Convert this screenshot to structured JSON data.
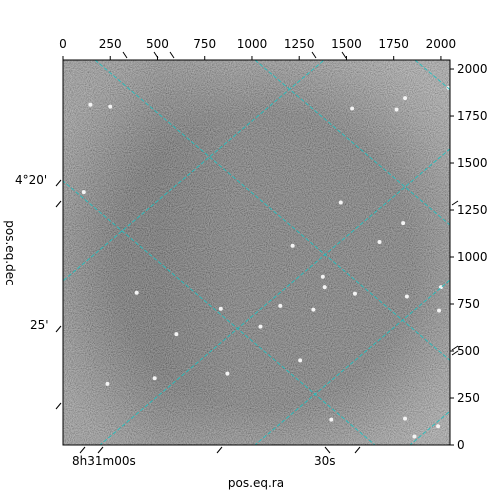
{
  "chart_data": {
    "type": "image",
    "xlabel": "pos.eq.ra",
    "ylabel": "pos.eq.dec",
    "pixel_axes": {
      "x_ticks": [
        0,
        250,
        500,
        750,
        1000,
        1250,
        1500,
        1750,
        2000
      ],
      "x_tick_labels": [
        "0",
        "250",
        "500",
        "750",
        "1000",
        "1250",
        "1500",
        "1750",
        "2000"
      ],
      "xlim": [
        0,
        2048
      ],
      "y_ticks": [
        0,
        250,
        500,
        750,
        1000,
        1250,
        1500,
        1750,
        2000
      ],
      "y_tick_labels": [
        "0",
        "250",
        "500",
        "750",
        "1000",
        "1250",
        "1500",
        "1750",
        "2000"
      ],
      "ylim": [
        0,
        2048
      ]
    },
    "world_axes": {
      "ra_tick_labels": [
        "8h31m00s",
        "30s"
      ],
      "dec_tick_labels": [
        "4°20'",
        "25'"
      ]
    },
    "grid": true,
    "grid_color": "#20c0c0",
    "colormap": "gray",
    "bright_sources": [
      {
        "x": 145,
        "y": 1810
      },
      {
        "x": 250,
        "y": 1800
      },
      {
        "x": 1530,
        "y": 1790
      },
      {
        "x": 1765,
        "y": 1785
      },
      {
        "x": 1810,
        "y": 1845
      },
      {
        "x": 2040,
        "y": 1900
      },
      {
        "x": 110,
        "y": 1345
      },
      {
        "x": 1470,
        "y": 1290
      },
      {
        "x": 1800,
        "y": 1180
      },
      {
        "x": 1675,
        "y": 1080
      },
      {
        "x": 1215,
        "y": 1060
      },
      {
        "x": 1375,
        "y": 895
      },
      {
        "x": 1385,
        "y": 840
      },
      {
        "x": 2000,
        "y": 840
      },
      {
        "x": 1820,
        "y": 790
      },
      {
        "x": 1990,
        "y": 715
      },
      {
        "x": 835,
        "y": 725
      },
      {
        "x": 1150,
        "y": 740
      },
      {
        "x": 1325,
        "y": 720
      },
      {
        "x": 390,
        "y": 810
      },
      {
        "x": 1545,
        "y": 805
      },
      {
        "x": 235,
        "y": 325
      },
      {
        "x": 485,
        "y": 355
      },
      {
        "x": 1420,
        "y": 135
      },
      {
        "x": 1810,
        "y": 140
      },
      {
        "x": 1860,
        "y": 45
      },
      {
        "x": 1985,
        "y": 100
      },
      {
        "x": 1255,
        "y": 450
      },
      {
        "x": 870,
        "y": 380
      },
      {
        "x": 600,
        "y": 590
      },
      {
        "x": 1045,
        "y": 630
      }
    ]
  }
}
